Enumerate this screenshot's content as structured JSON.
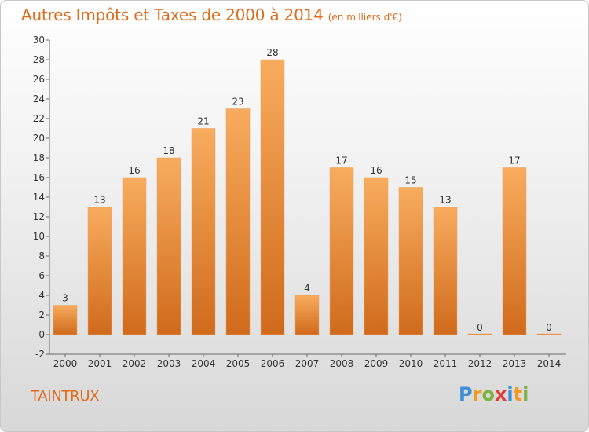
{
  "chart_data": {
    "type": "bar",
    "title": "Autres Impôts et Taxes de 2000 à 2014",
    "subtitle": "(en milliers d'€)",
    "categories": [
      "2000",
      "2001",
      "2002",
      "2003",
      "2004",
      "2005",
      "2006",
      "2007",
      "2008",
      "2009",
      "2010",
      "2011",
      "2012",
      "2013",
      "2014"
    ],
    "values": [
      3,
      13,
      16,
      18,
      21,
      23,
      28,
      4,
      17,
      16,
      15,
      13,
      0,
      17,
      0
    ],
    "ylim": [
      -2,
      30
    ],
    "yticks": [
      -2,
      0,
      2,
      4,
      6,
      8,
      10,
      12,
      14,
      16,
      18,
      20,
      22,
      24,
      26,
      28,
      30
    ],
    "grid": false,
    "colors": {
      "bar_light": "#f7a85a",
      "bar_dark": "#d46d1d",
      "title": "#e06a1a",
      "axis": "#444444"
    }
  },
  "place_name": "TAINTRUX",
  "logo": {
    "letters": [
      "P",
      "r",
      "o",
      "x",
      "i",
      "t",
      "i"
    ],
    "colors": [
      "#3a8fd6",
      "#f39a1e",
      "#7cb342",
      "#e53935",
      "#3a8fd6",
      "#f39a1e",
      "#7cb342"
    ]
  }
}
